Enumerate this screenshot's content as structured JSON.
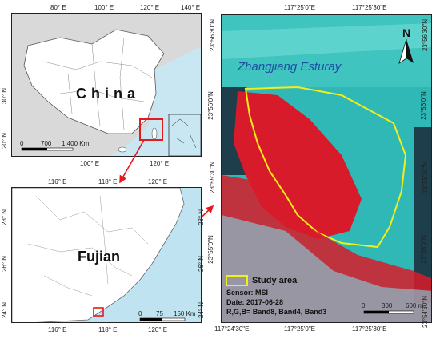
{
  "china_map": {
    "label": "China",
    "top_ticks": [
      "80° E",
      "100° E",
      "120° E",
      "140° E"
    ],
    "bottom_ticks": [
      "100° E",
      "120° E"
    ],
    "left_ticks": [
      "30° N",
      "20° N"
    ],
    "scale_labels": [
      "0",
      "700",
      "1,400 Km"
    ],
    "colors": {
      "land": "#ffffff",
      "outside": "#d9d9d9",
      "sea": "#c9e7f2",
      "border": "#555555",
      "highlight": "#e41a1c"
    }
  },
  "fujian_map": {
    "label": "Fujian",
    "top_ticks": [
      "116° E",
      "118° E",
      "120° E"
    ],
    "bottom_ticks": [
      "116° E",
      "118° E",
      "120° E"
    ],
    "left_ticks": [
      "28° N",
      "26° N",
      "24° N"
    ],
    "right_ticks": [
      "28° N",
      "26° N",
      "24° N"
    ],
    "scale_labels": [
      "0",
      "75",
      "150 Km"
    ],
    "colors": {
      "land": "#ffffff",
      "sea": "#bfe3f0",
      "border": "#666666"
    }
  },
  "study_map": {
    "title": "Zhangjiang Esturay",
    "north_label": "N",
    "top_ticks": [
      "117°25'0\"E",
      "117°25'30\"E"
    ],
    "bottom_ticks": [
      "117°24'30\"E",
      "117°25'0\"E",
      "117°25'30\"E"
    ],
    "left_ticks": [
      "23°56'30\"N",
      "23°56'0\"N",
      "23°55'30\"N",
      "23°55'0\"N"
    ],
    "right_ticks": [
      "23°56'30\"N",
      "23°56'0\"N",
      "23°55'30\"N",
      "23°55'0\"N",
      "23°54'30\"N"
    ],
    "legend_label": "Study area",
    "sensor": "Sensor: MSI",
    "date": "Date: 2017-06-28",
    "bands": "R,G,B= Band8, Band4, Band3",
    "scale_labels": [
      "0",
      "300",
      "600 m"
    ],
    "colors": {
      "water": "#2fb8b5",
      "vegetation": "#d81b2a",
      "boundary": "#f2ee1a",
      "urban": "#7fd9e6"
    }
  }
}
